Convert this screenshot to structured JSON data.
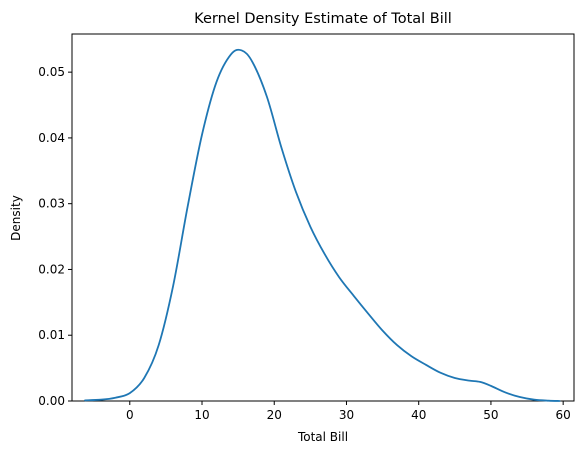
{
  "chart_data": {
    "type": "line",
    "title": "Kernel Density Estimate of Total Bill",
    "xlabel": "Total Bill",
    "ylabel": "Density",
    "xlim": [
      -8,
      61.5
    ],
    "ylim": [
      0,
      0.0558
    ],
    "x_ticks": [
      0,
      10,
      20,
      30,
      40,
      50,
      60
    ],
    "x_tick_labels": [
      "0",
      "10",
      "20",
      "30",
      "40",
      "50",
      "60"
    ],
    "y_ticks": [
      0,
      0.01,
      0.02,
      0.03,
      0.04,
      0.05
    ],
    "y_tick_labels": [
      "0.00",
      "0.01",
      "0.02",
      "0.03",
      "0.04",
      "0.05"
    ],
    "grid": false,
    "series": [
      {
        "color": "#1f77b4",
        "x": [
          -6.2,
          -4,
          -2,
          0,
          2,
          4,
          6,
          8,
          10,
          12,
          14,
          15.5,
          17,
          19,
          21,
          23,
          25,
          27,
          29,
          31,
          33,
          35,
          37,
          39,
          41,
          43,
          45,
          47,
          48.5,
          50,
          52,
          54,
          56,
          58,
          59.5
        ],
        "values": [
          0.0001,
          0.0002,
          0.0005,
          0.0012,
          0.0035,
          0.0085,
          0.0175,
          0.0295,
          0.0405,
          0.0485,
          0.0527,
          0.0533,
          0.0515,
          0.0462,
          0.0385,
          0.0318,
          0.0265,
          0.0223,
          0.0188,
          0.016,
          0.0133,
          0.0107,
          0.0085,
          0.0068,
          0.0055,
          0.0043,
          0.0035,
          0.0031,
          0.0029,
          0.0023,
          0.0013,
          0.0006,
          0.0002,
          5e-05,
          0.0
        ]
      }
    ]
  }
}
